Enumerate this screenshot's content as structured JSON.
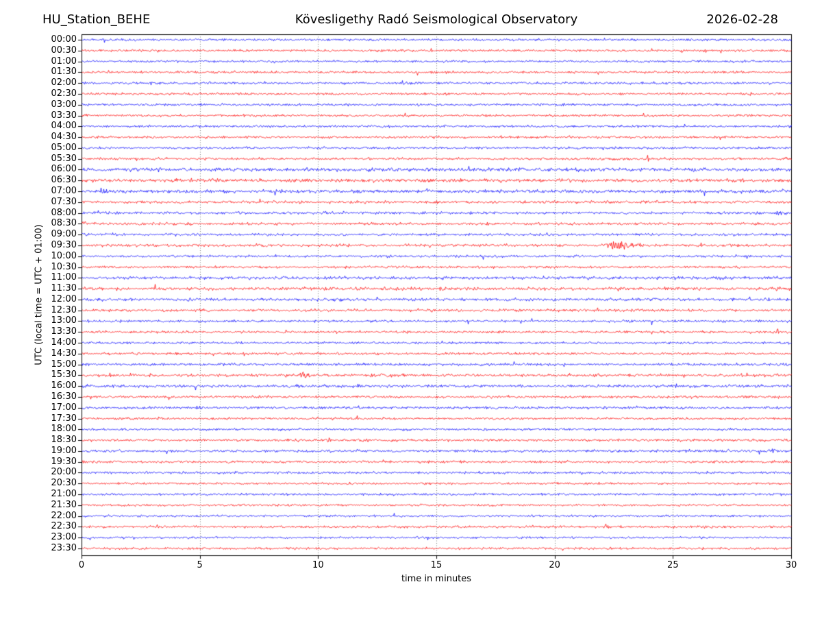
{
  "header": {
    "station": "HU_Station_BEHE",
    "observatory": "Kövesligethy Radó Seismological Observatory",
    "date": "2026-02-28"
  },
  "chart_data": {
    "type": "line",
    "subtype": "helicorder-daily-seismogram",
    "title": "Kövesligethy Radó Seismological Observatory",
    "station": "HU_Station_BEHE",
    "date": "2026-02-28",
    "xlabel": "time in minutes",
    "ylabel": "UTC (local time = UTC + 01:00)",
    "xlim": [
      0,
      30
    ],
    "x_ticks": [
      0,
      5,
      10,
      15,
      20,
      25,
      30
    ],
    "grid_minutes": [
      5,
      10,
      15,
      20,
      25
    ],
    "minutes_per_row": 30,
    "trace_colors": {
      "hour": "#0000ff",
      "half_hour": "#ff0000"
    },
    "frame_color": "#000000",
    "grid_color": "#777777",
    "events_note": "events = [start_minute, duration_minutes, amplitude_px]",
    "rows": [
      {
        "label": "00:00",
        "color": "#0000ff",
        "noise": 1.3,
        "events": []
      },
      {
        "label": "00:30",
        "color": "#ff0000",
        "noise": 1.3,
        "events": []
      },
      {
        "label": "01:00",
        "color": "#0000ff",
        "noise": 1.2,
        "events": []
      },
      {
        "label": "01:30",
        "color": "#ff0000",
        "noise": 1.3,
        "events": []
      },
      {
        "label": "02:00",
        "color": "#0000ff",
        "noise": 1.3,
        "events": [
          [
            2.8,
            0.5,
            2.5
          ]
        ]
      },
      {
        "label": "02:30",
        "color": "#ff0000",
        "noise": 1.3,
        "events": []
      },
      {
        "label": "03:00",
        "color": "#0000ff",
        "noise": 1.3,
        "events": []
      },
      {
        "label": "03:30",
        "color": "#ff0000",
        "noise": 1.3,
        "events": [
          [
            20.5,
            0.3,
            2.2
          ]
        ]
      },
      {
        "label": "04:00",
        "color": "#0000ff",
        "noise": 1.3,
        "events": [
          [
            18.8,
            0.25,
            2.0
          ]
        ]
      },
      {
        "label": "04:30",
        "color": "#ff0000",
        "noise": 1.3,
        "events": []
      },
      {
        "label": "05:00",
        "color": "#0000ff",
        "noise": 1.3,
        "events": []
      },
      {
        "label": "05:30",
        "color": "#ff0000",
        "noise": 1.4,
        "events": [
          [
            23.8,
            0.6,
            3.5
          ]
        ]
      },
      {
        "label": "06:00",
        "color": "#0000ff",
        "noise": 2.0,
        "events": []
      },
      {
        "label": "06:30",
        "color": "#ff0000",
        "noise": 1.9,
        "events": [
          [
            12.2,
            0.5,
            3.0
          ],
          [
            15.9,
            0.3,
            2.6
          ],
          [
            28.2,
            0.4,
            2.6
          ]
        ]
      },
      {
        "label": "07:00",
        "color": "#0000ff",
        "noise": 1.9,
        "events": []
      },
      {
        "label": "07:30",
        "color": "#ff0000",
        "noise": 1.5,
        "events": [
          [
            4.1,
            0.3,
            3.2
          ],
          [
            18.4,
            0.25,
            3.8
          ]
        ]
      },
      {
        "label": "08:00",
        "color": "#0000ff",
        "noise": 1.5,
        "events": [
          [
            29.2,
            0.8,
            5.5
          ]
        ]
      },
      {
        "label": "08:30",
        "color": "#ff0000",
        "noise": 1.5,
        "events": [
          [
            0.0,
            0.3,
            4.5
          ]
        ]
      },
      {
        "label": "09:00",
        "color": "#0000ff",
        "noise": 1.4,
        "events": []
      },
      {
        "label": "09:30",
        "color": "#ff0000",
        "noise": 1.5,
        "events": [
          [
            22.1,
            2.1,
            8.5
          ]
        ]
      },
      {
        "label": "10:00",
        "color": "#0000ff",
        "noise": 1.3,
        "events": [
          [
            12.8,
            0.3,
            2.2
          ]
        ]
      },
      {
        "label": "10:30",
        "color": "#ff0000",
        "noise": 1.3,
        "events": []
      },
      {
        "label": "11:00",
        "color": "#0000ff",
        "noise": 1.7,
        "events": []
      },
      {
        "label": "11:30",
        "color": "#ff0000",
        "noise": 1.8,
        "events": [
          [
            29.3,
            0.7,
            2.8
          ]
        ]
      },
      {
        "label": "12:00",
        "color": "#0000ff",
        "noise": 1.6,
        "events": []
      },
      {
        "label": "12:30",
        "color": "#ff0000",
        "noise": 1.5,
        "events": [
          [
            5.1,
            0.3,
            2.0
          ]
        ]
      },
      {
        "label": "13:00",
        "color": "#0000ff",
        "noise": 1.4,
        "events": []
      },
      {
        "label": "13:30",
        "color": "#ff0000",
        "noise": 1.4,
        "events": [
          [
            29.3,
            0.4,
            3.2
          ]
        ]
      },
      {
        "label": "14:00",
        "color": "#0000ff",
        "noise": 1.3,
        "events": []
      },
      {
        "label": "14:30",
        "color": "#ff0000",
        "noise": 1.3,
        "events": []
      },
      {
        "label": "15:00",
        "color": "#0000ff",
        "noise": 1.4,
        "events": [
          [
            29.5,
            0.5,
            4.5
          ]
        ]
      },
      {
        "label": "15:30",
        "color": "#ff0000",
        "noise": 1.6,
        "events": [
          [
            1.1,
            0.4,
            3.2
          ],
          [
            2.8,
            0.3,
            2.4
          ],
          [
            6.1,
            0.3,
            2.4
          ],
          [
            9.2,
            0.5,
            7.5
          ],
          [
            16.1,
            0.4,
            3.6
          ],
          [
            25.4,
            0.3,
            2.2
          ],
          [
            27.8,
            0.5,
            2.8
          ]
        ]
      },
      {
        "label": "16:00",
        "color": "#0000ff",
        "noise": 1.6,
        "events": [
          [
            0.2,
            0.2,
            2.8
          ],
          [
            17.3,
            0.25,
            3.2
          ]
        ]
      },
      {
        "label": "16:30",
        "color": "#ff0000",
        "noise": 1.4,
        "events": [
          [
            3.6,
            0.3,
            3.2
          ]
        ]
      },
      {
        "label": "17:00",
        "color": "#0000ff",
        "noise": 1.4,
        "events": [
          [
            1.7,
            0.4,
            3.2
          ],
          [
            4.8,
            0.4,
            3.6
          ]
        ]
      },
      {
        "label": "17:30",
        "color": "#ff0000",
        "noise": 1.3,
        "events": []
      },
      {
        "label": "18:00",
        "color": "#0000ff",
        "noise": 1.3,
        "events": []
      },
      {
        "label": "18:30",
        "color": "#ff0000",
        "noise": 1.4,
        "events": [
          [
            9.1,
            0.3,
            2.8
          ],
          [
            10.3,
            0.5,
            3.6
          ],
          [
            11.8,
            0.4,
            4.0
          ]
        ]
      },
      {
        "label": "19:00",
        "color": "#0000ff",
        "noise": 1.5,
        "events": [
          [
            26.4,
            0.9,
            3.2
          ],
          [
            29.1,
            0.7,
            2.8
          ]
        ]
      },
      {
        "label": "19:30",
        "color": "#ff0000",
        "noise": 1.4,
        "events": [
          [
            0.0,
            0.2,
            3.5
          ]
        ]
      },
      {
        "label": "20:00",
        "color": "#0000ff",
        "noise": 1.3,
        "events": []
      },
      {
        "label": "20:30",
        "color": "#ff0000",
        "noise": 1.2,
        "events": []
      },
      {
        "label": "21:00",
        "color": "#0000ff",
        "noise": 1.3,
        "events": []
      },
      {
        "label": "21:30",
        "color": "#ff0000",
        "noise": 1.2,
        "events": []
      },
      {
        "label": "22:00",
        "color": "#0000ff",
        "noise": 1.2,
        "events": []
      },
      {
        "label": "22:30",
        "color": "#ff0000",
        "noise": 1.3,
        "events": [
          [
            22.1,
            0.3,
            3.2
          ]
        ]
      },
      {
        "label": "23:00",
        "color": "#0000ff",
        "noise": 1.2,
        "events": []
      },
      {
        "label": "23:30",
        "color": "#ff0000",
        "noise": 1.3,
        "events": []
      }
    ]
  }
}
